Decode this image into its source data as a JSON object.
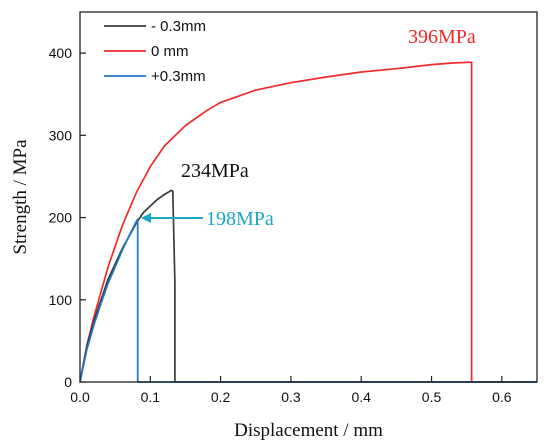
{
  "chart_data": {
    "type": "line",
    "title": "",
    "xlabel": "Displacement / mm",
    "ylabel": "Strength / MPa",
    "xlim": [
      0.0,
      0.65
    ],
    "ylim": [
      0,
      450
    ],
    "xticks": [
      0.0,
      0.1,
      0.2,
      0.3,
      0.4,
      0.5,
      0.6
    ],
    "xtick_labels": [
      "0.0",
      "0.1",
      "0.2",
      "0.3",
      "0.4",
      "0.5",
      "0.6"
    ],
    "yticks": [
      0,
      100,
      200,
      300,
      400
    ],
    "ytick_labels": [
      "0",
      "100",
      "200",
      "300",
      "400"
    ],
    "legend_position": "top-left",
    "series": [
      {
        "name": "- 0.3mm",
        "color": "#3a3a3a",
        "x": [
          0.0,
          0.01,
          0.02,
          0.04,
          0.06,
          0.08,
          0.09,
          0.1,
          0.11,
          0.12,
          0.13,
          0.132,
          0.135,
          0.135,
          0.65
        ],
        "y": [
          0,
          45,
          75,
          125,
          162,
          193,
          206,
          214,
          222,
          228,
          233,
          232,
          120,
          0,
          0
        ]
      },
      {
        "name": "0 mm",
        "color": "#ef2a2a",
        "x": [
          0.0,
          0.01,
          0.02,
          0.04,
          0.06,
          0.08,
          0.1,
          0.12,
          0.15,
          0.18,
          0.2,
          0.25,
          0.3,
          0.35,
          0.4,
          0.45,
          0.5,
          0.53,
          0.557,
          0.557,
          0.65
        ],
        "y": [
          0,
          45,
          80,
          140,
          190,
          230,
          262,
          287,
          312,
          330,
          340,
          355,
          364,
          371,
          377,
          381,
          386,
          388,
          389,
          0,
          0
        ]
      },
      {
        "name": "+0.3mm",
        "color": "#1f78c8",
        "x": [
          0.0,
          0.01,
          0.02,
          0.03,
          0.04,
          0.05,
          0.06,
          0.07,
          0.08,
          0.082,
          0.082,
          0.65
        ],
        "y": [
          0,
          40,
          70,
          96,
          120,
          140,
          160,
          178,
          195,
          198,
          0,
          0
        ]
      }
    ],
    "annotations": [
      {
        "text": "396MPa",
        "color": "#ef2a2a"
      },
      {
        "text": "234MPa",
        "color": "#111111"
      },
      {
        "text": "198MPa",
        "color": "#1aa6c8"
      }
    ]
  }
}
